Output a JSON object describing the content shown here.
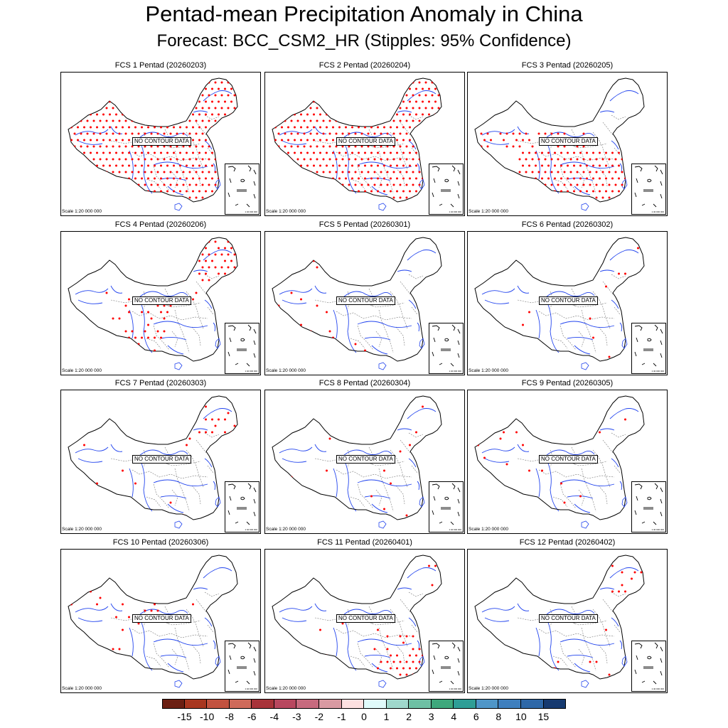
{
  "title": "Pentad-mean Precipitation Anomaly in China",
  "subtitle": "Forecast: BCC_CSM2_HR (Stipples: 95% Confidence)",
  "no_contour_text": "NO CONTOUR DATA",
  "scale_text": "Scale 1:20 000 000",
  "inset_scale_text": "1:40 000 000",
  "colors": {
    "stipple": "#ff0000",
    "rivers": "#2244ee",
    "border": "#000000",
    "province": "#777777"
  },
  "panels": [
    {
      "label": "FCS 1 Pentad (20260203)",
      "stipple_coverage": "dense-all"
    },
    {
      "label": "FCS 2 Pentad (20260204)",
      "stipple_coverage": "dense-all"
    },
    {
      "label": "FCS 3 Pentad (20260205)",
      "stipple_coverage": "south-central"
    },
    {
      "label": "FCS 4 Pentad (20260206)",
      "stipple_coverage": "northeast-west"
    },
    {
      "label": "FCS 5 Pentad (20260301)",
      "stipple_coverage": "sparse-west"
    },
    {
      "label": "FCS 6 Pentad (20260302)",
      "stipple_coverage": "sparse"
    },
    {
      "label": "FCS 7 Pentad (20260303)",
      "stipple_coverage": "sparse-northeast"
    },
    {
      "label": "FCS 8 Pentad (20260304)",
      "stipple_coverage": "sparse"
    },
    {
      "label": "FCS 9 Pentad (20260305)",
      "stipple_coverage": "sparse"
    },
    {
      "label": "FCS 10 Pentad (20260306)",
      "stipple_coverage": "sparse-west"
    },
    {
      "label": "FCS 11 Pentad (20260401)",
      "stipple_coverage": "south-cluster"
    },
    {
      "label": "FCS 12 Pentad (20260402)",
      "stipple_coverage": "sparse-south-northeast"
    }
  ],
  "colorbar": {
    "labels": [
      "-15",
      "-10",
      "-8",
      "-6",
      "-4",
      "-3",
      "-2",
      "-1",
      "0",
      "1",
      "2",
      "3",
      "4",
      "6",
      "8",
      "10",
      "15"
    ],
    "colors": [
      "#6b1f12",
      "#a8361f",
      "#c2523f",
      "#cf6a5a",
      "#a8333a",
      "#b8475f",
      "#c76a7e",
      "#d99aa2",
      "#fde0e0",
      "#e0fafa",
      "#9fd8cc",
      "#6ec0a4",
      "#3ea87c",
      "#2e9e96",
      "#4f96c8",
      "#3e7fbe",
      "#2e68a8",
      "#163a70"
    ]
  }
}
